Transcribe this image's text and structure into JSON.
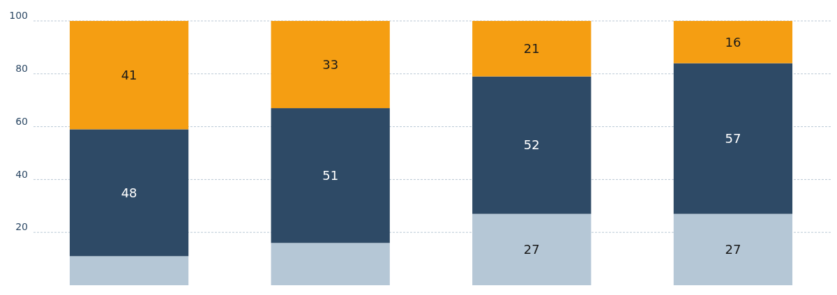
{
  "chart_data": {
    "type": "bar",
    "stacked": true,
    "categories": [
      null,
      null,
      null,
      null
    ],
    "series": [
      {
        "color": "#b5c7d6",
        "values": [
          11,
          16,
          27,
          27
        ],
        "value_labels": [
          null,
          null,
          "27",
          "27"
        ]
      },
      {
        "color": "#2e4a66",
        "values": [
          48,
          51,
          52,
          57
        ],
        "value_labels": [
          "48",
          "51",
          "52",
          "57"
        ]
      },
      {
        "color": "#f59e12",
        "values": [
          41,
          33,
          21,
          16
        ],
        "value_labels": [
          "41",
          "33",
          "21",
          "16"
        ]
      }
    ],
    "ylim": [
      0,
      100
    ],
    "yticks": [
      20,
      40,
      60,
      80,
      100
    ],
    "grid": "y"
  }
}
